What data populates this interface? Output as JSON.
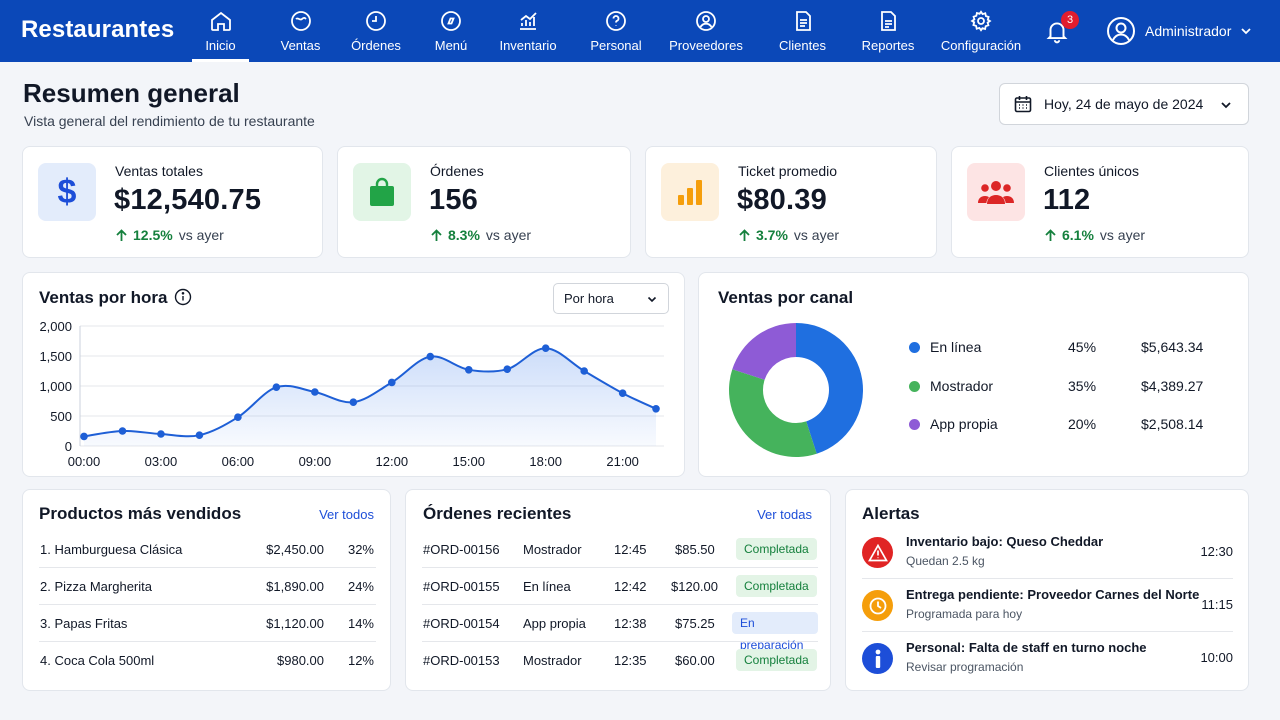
{
  "app": {
    "title": "Restaurantes"
  },
  "nav": [
    {
      "label": "Inicio",
      "icon": "home-icon"
    },
    {
      "label": "Ventas",
      "icon": "ventas-icon"
    },
    {
      "label": "Órdenes",
      "icon": "clock-icon"
    },
    {
      "label": "Menú",
      "icon": "menu-compass-icon"
    },
    {
      "label": "Inventario",
      "icon": "chart-up-icon"
    },
    {
      "label": "Personal",
      "icon": "help-circle-icon"
    },
    {
      "label": "Proveedores",
      "icon": "user-circle-icon"
    },
    {
      "label": "Clientes",
      "icon": "document-icon"
    },
    {
      "label": "Reportes",
      "icon": "report-icon"
    },
    {
      "label": "Configuración",
      "icon": "gear-icon"
    }
  ],
  "notifications": {
    "count": "3"
  },
  "user": {
    "name": "Administrador"
  },
  "header": {
    "title": "Resumen general",
    "subtitle": "Vista general del rendimiento de tu restaurante",
    "date": "Hoy, 24 de mayo de 2024"
  },
  "kpis": [
    {
      "label": "Ventas totales",
      "value": "$12,540.75",
      "delta": "12.5%",
      "delta_suffix": "vs ayer",
      "icon": "dollar-icon",
      "color": "#1d4ed8",
      "bg": "#e3ecfb"
    },
    {
      "label": "Órdenes",
      "value": "156",
      "delta": "8.3%",
      "delta_suffix": "vs ayer",
      "icon": "shopping-bag-icon",
      "color": "#22a447",
      "bg": "#e2f5e6"
    },
    {
      "label": "Ticket promedio",
      "value": "$80.39",
      "delta": "3.7%",
      "delta_suffix": "vs ayer",
      "icon": "bar-chart-icon",
      "color": "#f59e0b",
      "bg": "#fdf0dc"
    },
    {
      "label": "Clientes únicos",
      "value": "112",
      "delta": "6.1%",
      "delta_suffix": "vs ayer",
      "icon": "users-icon",
      "color": "#dc2626",
      "bg": "#fde4e4"
    }
  ],
  "sales_by_hour": {
    "title": "Ventas por hora",
    "select": "Por hora"
  },
  "sales_by_channel": {
    "title": "Ventas por canal",
    "items": [
      {
        "name": "En línea",
        "pct": "45%",
        "amount": "$5,643.34",
        "color": "#1f6fe0"
      },
      {
        "name": "Mostrador",
        "pct": "35%",
        "amount": "$4,389.27",
        "color": "#45b35c"
      },
      {
        "name": "App propia",
        "pct": "20%",
        "amount": "$2,508.14",
        "color": "#8e5bd6"
      }
    ]
  },
  "chart_data": [
    {
      "type": "line",
      "title": "Ventas por hora",
      "x": [
        0,
        1.5,
        3,
        4.5,
        6,
        7.5,
        9,
        10.5,
        12,
        13.5,
        15,
        16.5,
        18,
        19.5,
        21,
        22.3
      ],
      "x_tick_labels": [
        "00:00",
        "03:00",
        "06:00",
        "09:00",
        "12:00",
        "15:00",
        "18:00",
        "21:00"
      ],
      "x_tick_values": [
        0,
        3,
        6,
        9,
        12,
        15,
        18,
        21
      ],
      "values": [
        160,
        250,
        200,
        180,
        480,
        980,
        900,
        730,
        1060,
        1490,
        1270,
        1280,
        1630,
        1250,
        880,
        620
      ],
      "ylim": [
        0,
        2000
      ],
      "y_ticks": [
        0,
        500,
        1000,
        1500,
        2000
      ],
      "y_tick_labels": [
        "0",
        "500",
        "1,000",
        "1,500",
        "2,000"
      ],
      "grid": true,
      "color": "#1e5fd6"
    },
    {
      "type": "pie",
      "title": "Ventas por canal",
      "labels": [
        "En línea",
        "Mostrador",
        "App propia"
      ],
      "values": [
        45,
        35,
        20
      ],
      "colors": [
        "#1f6fe0",
        "#45b35c",
        "#8e5bd6"
      ],
      "donut": true
    }
  ],
  "top_products": {
    "title": "Productos más vendidos",
    "link": "Ver todos",
    "rows": [
      {
        "name": "1.  Hamburguesa Clásica",
        "amount": "$2,450.00",
        "pct": "32%"
      },
      {
        "name": "2.  Pizza Margherita",
        "amount": "$1,890.00",
        "pct": "24%"
      },
      {
        "name": "3.  Papas Fritas",
        "amount": "$1,120.00",
        "pct": "14%"
      },
      {
        "name": "4.  Coca Cola 500ml",
        "amount": "$980.00",
        "pct": "12%"
      }
    ]
  },
  "recent_orders": {
    "title": "Órdenes recientes",
    "link": "Ver todas",
    "rows": [
      {
        "id": "#ORD-00156",
        "channel": "Mostrador",
        "time": "12:45",
        "amount": "$85.50",
        "status": "Completada",
        "status_color": "#15803d",
        "status_bg": "#e3f4e6"
      },
      {
        "id": "#ORD-00155",
        "channel": "En línea",
        "time": "12:42",
        "amount": "$120.00",
        "status": "Completada",
        "status_color": "#15803d",
        "status_bg": "#e3f4e6"
      },
      {
        "id": "#ORD-00154",
        "channel": "App propia",
        "time": "12:38",
        "amount": "$75.25",
        "status": "En preparación",
        "status_color": "#1d4ed8",
        "status_bg": "#e3ecfb"
      },
      {
        "id": "#ORD-00153",
        "channel": "Mostrador",
        "time": "12:35",
        "amount": "$60.00",
        "status": "Completada",
        "status_color": "#15803d",
        "status_bg": "#e3f4e6"
      }
    ]
  },
  "alerts": {
    "title": "Alertas",
    "rows": [
      {
        "title": "Inventario bajo: Queso Cheddar",
        "sub": "Quedan 2.5 kg",
        "time": "12:30",
        "icon": "warning-icon",
        "color": "#e02424"
      },
      {
        "title": "Entrega pendiente: Proveedor Carnes del Norte",
        "sub": "Programada para hoy",
        "time": "11:15",
        "icon": "clock-icon",
        "color": "#f59e0b"
      },
      {
        "title": "Personal: Falta de staff en turno noche",
        "sub": "Revisar programación",
        "time": "10:00",
        "icon": "info-icon",
        "color": "#1d4ed8"
      }
    ]
  }
}
